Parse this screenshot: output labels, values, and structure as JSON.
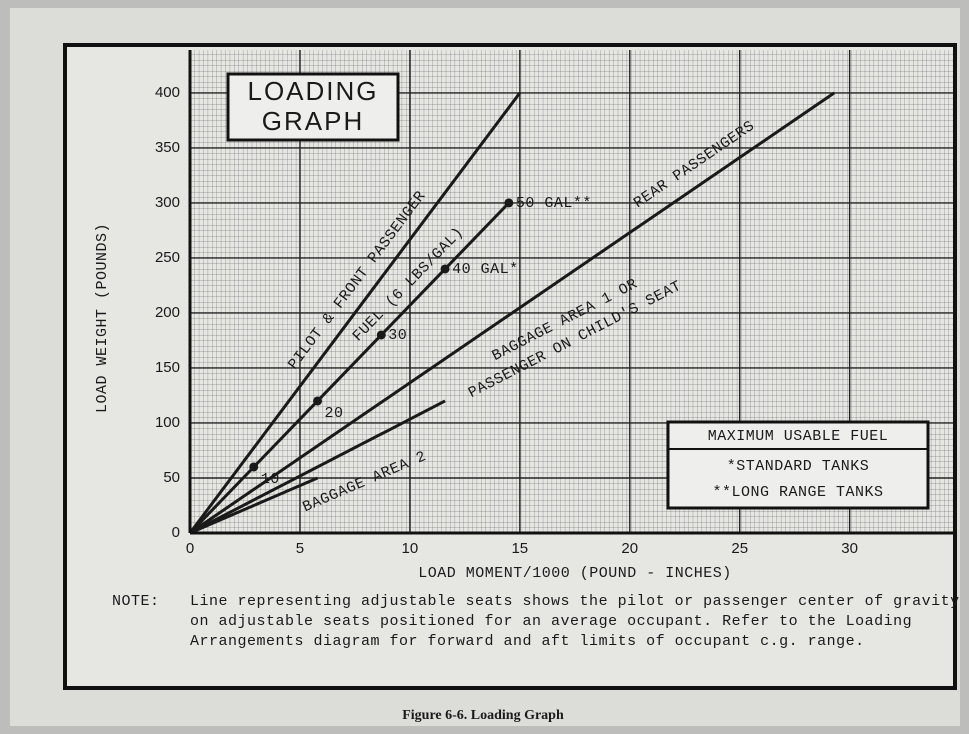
{
  "chart_data": {
    "type": "line",
    "title": [
      "LOADING",
      "GRAPH"
    ],
    "x_label": "LOAD MOMENT/1000 (POUND - INCHES)",
    "y_label": "LOAD WEIGHT (POUNDS)",
    "xlim": [
      0,
      34.7
    ],
    "ylim": [
      0,
      439
    ],
    "xticks": [
      0,
      5,
      10,
      15,
      20,
      25,
      30
    ],
    "yticks": [
      0,
      50,
      100,
      150,
      200,
      250,
      300,
      350,
      400
    ],
    "grid": true,
    "series": [
      {
        "name": "PILOT & FRONT PASSENGER",
        "color": "#1a1a1a",
        "x": [
          0,
          15
        ],
        "values": [
          0,
          400
        ]
      },
      {
        "name": "FUEL (6 LBS/GAL)",
        "color": "#1a1a1a",
        "x": [
          0,
          2.9,
          5.8,
          8.7,
          11.6,
          14.5
        ],
        "values": [
          0,
          60,
          120,
          180,
          240,
          300
        ],
        "point_labels": [
          null,
          "10",
          "20",
          "30",
          "40 GAL*",
          "50 GAL**"
        ]
      },
      {
        "name": "REAR PASSENGERS",
        "color": "#1a1a1a",
        "x": [
          0,
          29.3
        ],
        "values": [
          0,
          400
        ]
      },
      {
        "name": [
          "BAGGAGE AREA 1 OR",
          "PASSENGER ON CHILD'S SEAT"
        ],
        "color": "#1a1a1a",
        "x": [
          0,
          11.6
        ],
        "values": [
          0,
          120
        ]
      },
      {
        "name": "BAGGAGE AREA 2",
        "color": "#1a1a1a",
        "x": [
          0,
          5.8
        ],
        "values": [
          0,
          50
        ]
      }
    ],
    "fuel_box": {
      "title": "MAXIMUM USABLE FUEL",
      "lines": [
        "*STANDARD TANKS",
        "**LONG RANGE TANKS"
      ]
    },
    "note": {
      "label": "NOTE:",
      "lines": [
        "Line representing adjustable seats shows the pilot or passenger center of gravity",
        "on adjustable seats positioned for an average occupant.  Refer to the Loading",
        "Arrangements diagram for forward and aft limits of occupant c.g. range."
      ]
    },
    "caption": "Figure 6-6.  Loading Graph"
  }
}
